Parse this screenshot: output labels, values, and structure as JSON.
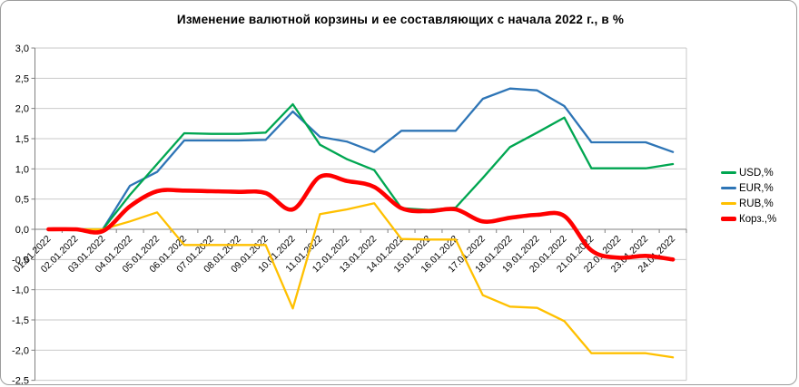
{
  "chart_data": {
    "type": "line",
    "title": "Изменение валютной корзины и ее составляющих с начала 2022 г., в %",
    "categories": [
      "01.01.2022",
      "02.01.2022",
      "03.01.2022",
      "04.01.2022",
      "05.01.2022",
      "06.01.2022",
      "07.01.2022",
      "08.01.2022",
      "09.01.2022",
      "10.01.2022",
      "11.01.2022",
      "12.01.2022",
      "13.01.2022",
      "14.01.2022",
      "15.01.2022",
      "16.01.2022",
      "17.01.2022",
      "18.01.2022",
      "19.01.2022",
      "20.01.2022",
      "21.01.2022",
      "22.01.2022",
      "23.01.2022",
      "24.01.2022"
    ],
    "series": [
      {
        "name": "USD,%",
        "color": "#00A651",
        "smooth": false,
        "values": [
          0.0,
          0.0,
          0.0,
          0.57,
          1.08,
          1.59,
          1.58,
          1.58,
          1.6,
          2.07,
          1.4,
          1.16,
          0.98,
          0.35,
          0.32,
          0.36,
          0.85,
          1.36,
          1.6,
          1.85,
          1.01,
          1.01,
          1.01,
          1.08
        ]
      },
      {
        "name": "EUR,%",
        "color": "#2E75B6",
        "smooth": false,
        "values": [
          0.0,
          0.0,
          0.0,
          0.72,
          0.95,
          1.47,
          1.47,
          1.47,
          1.48,
          1.95,
          1.53,
          1.45,
          1.28,
          1.63,
          1.63,
          1.63,
          2.16,
          2.33,
          2.3,
          2.04,
          1.44,
          1.44,
          1.44,
          1.28
        ]
      },
      {
        "name": "RUB,%",
        "color": "#FFC000",
        "smooth": false,
        "values": [
          0.0,
          0.0,
          0.0,
          0.13,
          0.28,
          -0.26,
          -0.26,
          -0.26,
          -0.26,
          -1.31,
          0.25,
          0.33,
          0.43,
          -0.16,
          -0.17,
          -0.17,
          -1.09,
          -1.28,
          -1.3,
          -1.52,
          -2.05,
          -2.05,
          -2.05,
          -2.12
        ]
      },
      {
        "name": "Корз.,%",
        "color": "#FF0000",
        "smooth": true,
        "values": [
          0.0,
          0.0,
          -0.03,
          0.38,
          0.63,
          0.64,
          0.63,
          0.62,
          0.6,
          0.33,
          0.87,
          0.8,
          0.7,
          0.35,
          0.3,
          0.33,
          0.13,
          0.19,
          0.24,
          0.22,
          -0.35,
          -0.47,
          -0.44,
          -0.5
        ]
      }
    ],
    "ylim": [
      -2.5,
      3.0
    ],
    "ytick_step": 0.5,
    "ytick_values": [
      3.0,
      2.5,
      2.0,
      1.5,
      1.0,
      0.5,
      0.0,
      -0.5,
      -1.0,
      -1.5,
      -2.0,
      -2.5
    ],
    "ytick_labels": [
      "3,0",
      "2,5",
      "2,0",
      "1,5",
      "1,0",
      "0,5",
      "0,0",
      "-0,5",
      "-1,0",
      "-1,5",
      "-2,0",
      "-2,5"
    ],
    "xlabel": "",
    "ylabel": "",
    "grid": true,
    "legend_position": "right",
    "x_labels_rotation_deg": -45,
    "x_axis_crosses_at": 0
  },
  "colors": {
    "background": "#FFFFFF",
    "gridline": "#C9C9C9",
    "axis": "#808080",
    "plot_border": "#C9C9C9",
    "text": "#000000",
    "chart_border": "#9C9C9C"
  }
}
